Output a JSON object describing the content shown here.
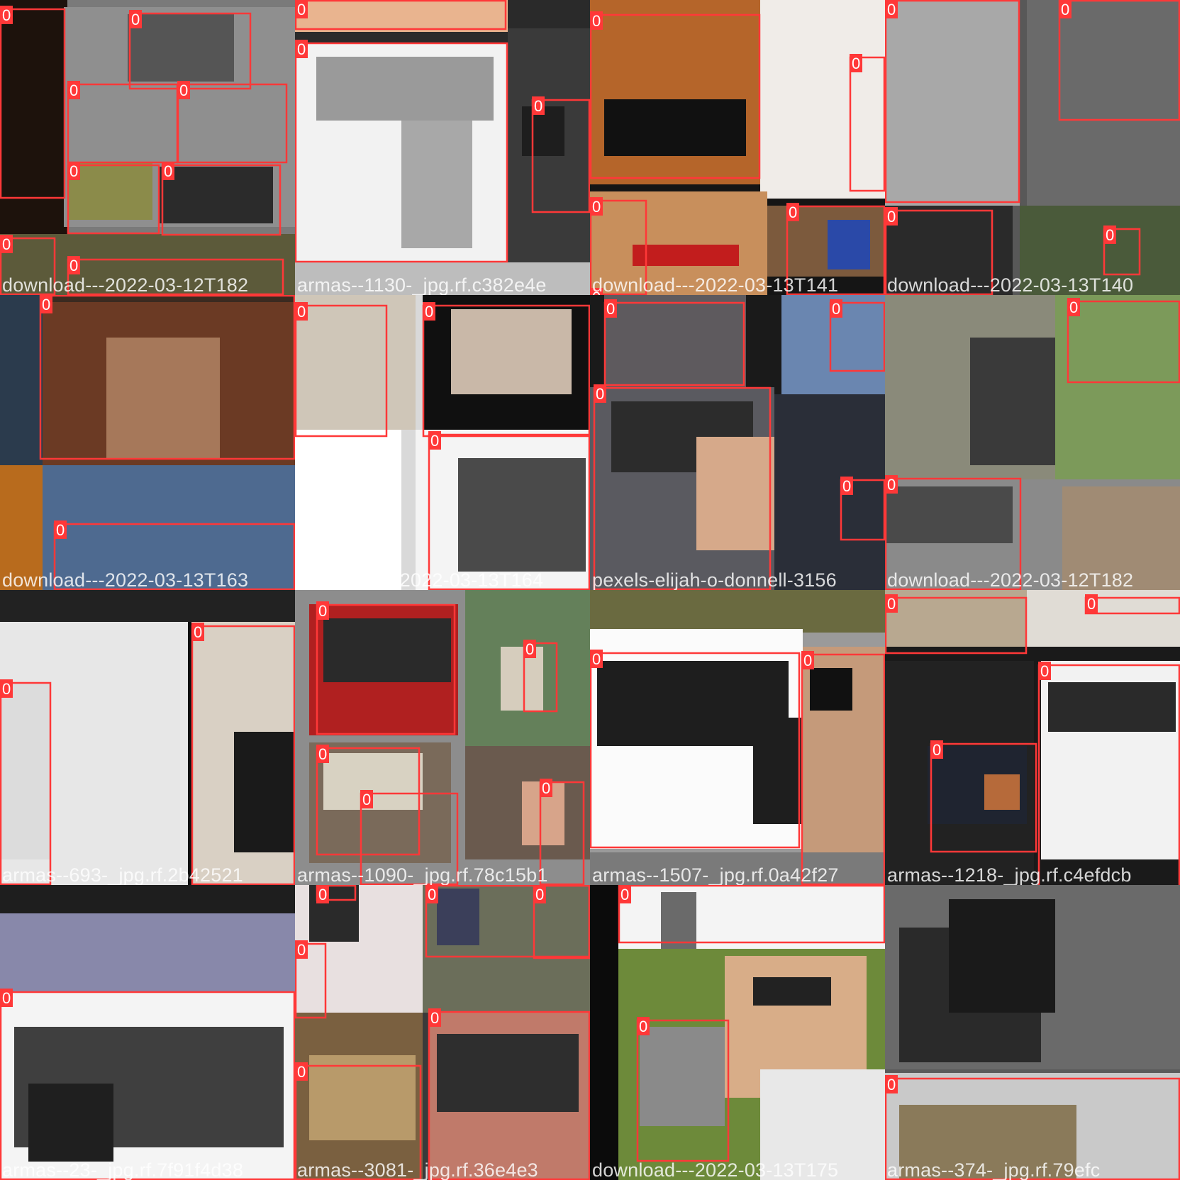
{
  "palette": {
    "box": "#ff3838",
    "label_text": "#ffffff"
  },
  "tiles": [
    {
      "filename": "download---2022-03-12T182",
      "class_label": "0"
    },
    {
      "filename": "armas--1130-_jpg.rf.c382e4e",
      "class_label": "0"
    },
    {
      "filename": "download---2022-03-13T141",
      "class_label": "0"
    },
    {
      "filename": "download---2022-03-13T140",
      "class_label": "0"
    },
    {
      "filename": "download---2022-03-13T163",
      "class_label": "0"
    },
    {
      "filename": "download---2022-03-13T164",
      "class_label": "0"
    },
    {
      "filename": "pexels-elijah-o-donnell-3156",
      "class_label": "0"
    },
    {
      "filename": "download---2022-03-12T182",
      "class_label": "0"
    },
    {
      "filename": "armas--693-_jpg.rf.2b42521",
      "class_label": "0"
    },
    {
      "filename": "armas--1090-_jpg.rf.78c15b1",
      "class_label": "0"
    },
    {
      "filename": "armas--1507-_jpg.rf.0a42f27",
      "class_label": "0"
    },
    {
      "filename": "armas--1218-_jpg.rf.c4efdcb",
      "class_label": "0"
    },
    {
      "filename": "armas--23-_jpg.rf.7f91f4d38",
      "class_label": "0"
    },
    {
      "filename": "armas--3081-_jpg.rf.36e4e3",
      "class_label": "0"
    },
    {
      "filename": "download---2022-03-13T175",
      "class_label": "0"
    },
    {
      "filename": "armas--374-_jpg.rf.79efc",
      "class_label": "0"
    }
  ]
}
